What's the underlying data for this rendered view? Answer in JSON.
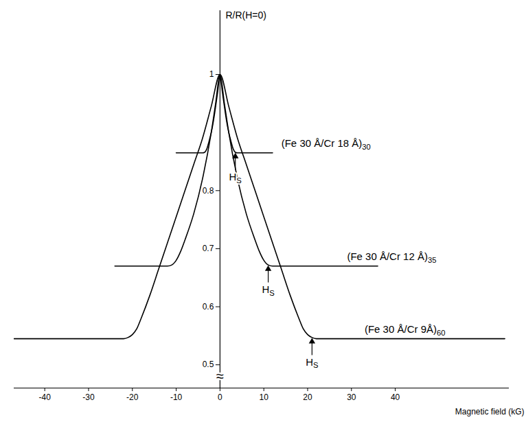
{
  "chart_data": {
    "type": "line",
    "x_label": "Magnetic field (kG)",
    "y_label": "R/R(H=0)",
    "xlim": [
      -47,
      66
    ],
    "ylim": [
      0.46,
      1.11
    ],
    "xticks": [
      -40,
      -30,
      -20,
      -10,
      0,
      10,
      20,
      30,
      40
    ],
    "yticks": [
      0.5,
      0.6,
      0.7,
      0.8,
      1
    ],
    "grid": false,
    "series": [
      {
        "name": "(Fe 30 Å/Cr 18 Å)30",
        "color": "#000000",
        "x": [
          -10,
          -4,
          -3.5,
          -3,
          -2.5,
          -2,
          -1.5,
          -1,
          -0.5,
          0,
          0.5,
          1,
          1.5,
          2,
          2.5,
          3,
          3.5,
          4,
          12
        ],
        "values": [
          0.865,
          0.865,
          0.866,
          0.872,
          0.885,
          0.9,
          0.92,
          0.945,
          0.972,
          1,
          0.972,
          0.945,
          0.92,
          0.9,
          0.885,
          0.872,
          0.866,
          0.865,
          0.865
        ],
        "label_x": 14,
        "label_y": 0.872
      },
      {
        "name": "(Fe 30 Å/Cr 12 Å)35",
        "color": "#000000",
        "x": [
          -24,
          -12,
          -11,
          -10,
          -9,
          -8,
          -6,
          -4,
          -2,
          -1,
          0,
          1,
          2,
          4,
          6,
          8,
          9,
          10,
          11,
          12,
          36
        ],
        "values": [
          0.67,
          0.67,
          0.672,
          0.68,
          0.695,
          0.715,
          0.76,
          0.82,
          0.9,
          0.95,
          1,
          0.95,
          0.9,
          0.82,
          0.76,
          0.715,
          0.695,
          0.68,
          0.672,
          0.67,
          0.67
        ],
        "label_x": 29,
        "label_y": 0.677
      },
      {
        "name": "(Fe 30 Å/Cr 9Å)60",
        "color": "#000000",
        "x": [
          -47,
          -22,
          -21,
          -20,
          -19,
          -18,
          -16,
          -14,
          -12,
          -10,
          -8,
          -6,
          -4,
          -2,
          0,
          2,
          4,
          6,
          8,
          10,
          12,
          14,
          16,
          18,
          19,
          20,
          21,
          22,
          65
        ],
        "values": [
          0.545,
          0.545,
          0.547,
          0.552,
          0.562,
          0.58,
          0.62,
          0.665,
          0.71,
          0.755,
          0.8,
          0.845,
          0.89,
          0.945,
          1,
          0.945,
          0.89,
          0.845,
          0.8,
          0.755,
          0.71,
          0.665,
          0.62,
          0.58,
          0.562,
          0.552,
          0.547,
          0.545,
          0.545
        ],
        "label_x": 33,
        "label_y": 0.552
      }
    ],
    "hs_markers": [
      {
        "text": "HS",
        "x": 3.5,
        "y": 0.866
      },
      {
        "text": "HS",
        "x": 11,
        "y": 0.672
      },
      {
        "text": "HS",
        "x": 21,
        "y": 0.547
      }
    ],
    "annotations": [
      {
        "text": "≈",
        "x": 0,
        "y": 0.48
      }
    ]
  }
}
